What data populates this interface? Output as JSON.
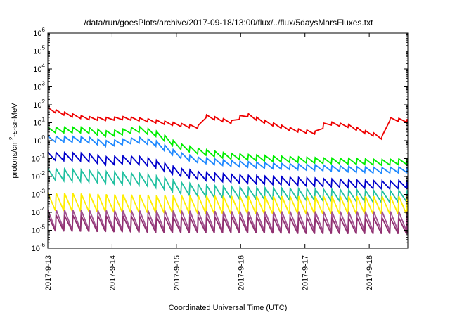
{
  "chart_data": {
    "type": "line",
    "title": "/data/run/goesPlots/archive/2017-09-18/13:00/flux/../flux/5daysMarsFluxes.txt",
    "xlabel": "Coordinated Universal Time (UTC)",
    "ylabel_parts": [
      "protons/cm",
      "2",
      "-s-sr-MeV"
    ],
    "ylabel": "protons/cm2-s-sr-MeV",
    "y_scale": "log",
    "ylim_exp": [
      -6,
      6
    ],
    "y_ticks": [
      {
        "base": "10",
        "exp": "6"
      },
      {
        "base": "10",
        "exp": "5"
      },
      {
        "base": "10",
        "exp": "4"
      },
      {
        "base": "10",
        "exp": "3"
      },
      {
        "base": "10",
        "exp": "2"
      },
      {
        "base": "10",
        "exp": "1"
      },
      {
        "base": "10",
        "exp": "0"
      },
      {
        "base": "10",
        "exp": "-1"
      },
      {
        "base": "10",
        "exp": "-2"
      },
      {
        "base": "10",
        "exp": "-3"
      },
      {
        "base": "10",
        "exp": "-4"
      },
      {
        "base": "10",
        "exp": "-5"
      },
      {
        "base": "10",
        "exp": "-6"
      }
    ],
    "x_range_days": [
      0,
      5.6
    ],
    "x_ticks": [
      {
        "label": "2017-9-13",
        "day": 0
      },
      {
        "label": "2017-9-14",
        "day": 1
      },
      {
        "label": "2017-9-15",
        "day": 2
      },
      {
        "label": "2017-9-16",
        "day": 3
      },
      {
        "label": "2017-9-17",
        "day": 4
      },
      {
        "label": "2017-9-18",
        "day": 5
      }
    ],
    "grid": false,
    "legend": "none",
    "series": [
      {
        "color": "#ee0000",
        "sawtooth_period_days": 0.13,
        "drop_decades": 0.18,
        "envelope": [
          [
            0,
            1.85
          ],
          [
            0.3,
            1.55
          ],
          [
            0.6,
            1.35
          ],
          [
            0.9,
            1.3
          ],
          [
            1.2,
            1.35
          ],
          [
            1.5,
            1.25
          ],
          [
            1.8,
            1.1
          ],
          [
            2.0,
            1.0
          ],
          [
            2.2,
            0.9
          ],
          [
            2.35,
            0.85
          ],
          [
            2.4,
            1.5
          ],
          [
            2.7,
            1.25
          ],
          [
            2.9,
            1.1
          ],
          [
            3.05,
            1.6
          ],
          [
            3.4,
            1.1
          ],
          [
            3.6,
            0.9
          ],
          [
            3.8,
            0.7
          ],
          [
            4.0,
            0.6
          ],
          [
            4.25,
            0.5
          ],
          [
            4.3,
            1.1
          ],
          [
            4.7,
            0.9
          ],
          [
            4.9,
            0.6
          ],
          [
            5.1,
            0.4
          ],
          [
            5.2,
            0.25
          ],
          [
            5.3,
            1.3
          ],
          [
            5.6,
            1.2
          ]
        ]
      },
      {
        "color": "#00ee00",
        "sawtooth_period_days": 0.13,
        "drop_decades": 0.32,
        "envelope": [
          [
            0,
            0.75
          ],
          [
            0.6,
            0.75
          ],
          [
            0.9,
            0.55
          ],
          [
            1.1,
            0.6
          ],
          [
            1.4,
            0.8
          ],
          [
            1.65,
            0.6
          ],
          [
            1.85,
            0.25
          ],
          [
            2.0,
            -0.1
          ],
          [
            2.3,
            -0.4
          ],
          [
            2.8,
            -0.7
          ],
          [
            3.5,
            -0.85
          ],
          [
            4.2,
            -0.95
          ],
          [
            4.8,
            -1.0
          ],
          [
            5.2,
            -1.05
          ],
          [
            5.6,
            -1.0
          ]
        ]
      },
      {
        "color": "#1e88ff",
        "sawtooth_period_days": 0.13,
        "drop_decades": 0.32,
        "envelope": [
          [
            0,
            0.25
          ],
          [
            0.6,
            0.22
          ],
          [
            0.9,
            0.0
          ],
          [
            1.1,
            0.05
          ],
          [
            1.4,
            0.2
          ],
          [
            1.65,
            0.05
          ],
          [
            1.85,
            -0.3
          ],
          [
            2.0,
            -0.6
          ],
          [
            2.3,
            -0.9
          ],
          [
            2.8,
            -1.1
          ],
          [
            3.5,
            -1.25
          ],
          [
            4.2,
            -1.35
          ],
          [
            4.8,
            -1.45
          ],
          [
            5.2,
            -1.5
          ],
          [
            5.6,
            -1.45
          ]
        ]
      },
      {
        "color": "#0000cc",
        "sawtooth_period_days": 0.13,
        "drop_decades": 0.45,
        "envelope": [
          [
            0,
            -0.65
          ],
          [
            0.6,
            -0.7
          ],
          [
            0.9,
            -0.9
          ],
          [
            1.2,
            -0.85
          ],
          [
            1.5,
            -0.9
          ],
          [
            1.7,
            -1.1
          ],
          [
            2.0,
            -1.5
          ],
          [
            2.4,
            -1.75
          ],
          [
            2.9,
            -1.9
          ],
          [
            3.5,
            -2.0
          ],
          [
            4.2,
            -2.1
          ],
          [
            4.8,
            -2.2
          ],
          [
            5.3,
            -2.25
          ],
          [
            5.6,
            -2.2
          ]
        ]
      },
      {
        "color": "#20c0a0",
        "sawtooth_period_days": 0.13,
        "drop_decades": 0.65,
        "envelope": [
          [
            0,
            -1.55
          ],
          [
            0.6,
            -1.65
          ],
          [
            1.0,
            -1.75
          ],
          [
            1.5,
            -1.85
          ],
          [
            1.8,
            -2.05
          ],
          [
            2.1,
            -2.35
          ],
          [
            2.5,
            -2.5
          ],
          [
            3.0,
            -2.6
          ],
          [
            3.6,
            -2.65
          ],
          [
            4.2,
            -2.7
          ],
          [
            4.8,
            -2.75
          ],
          [
            5.3,
            -2.8
          ],
          [
            5.6,
            -2.75
          ]
        ]
      },
      {
        "color": "#ffee00",
        "sawtooth_period_days": 0.13,
        "drop_decades": 1.0,
        "envelope": [
          [
            0,
            -2.9
          ],
          [
            1.0,
            -3.0
          ],
          [
            2.0,
            -3.05
          ],
          [
            3.0,
            -3.1
          ],
          [
            4.0,
            -3.1
          ],
          [
            5.0,
            -3.1
          ],
          [
            5.6,
            -3.1
          ]
        ]
      },
      {
        "color": "#a05090",
        "sawtooth_period_days": 0.13,
        "drop_decades": 1.1,
        "envelope": [
          [
            0,
            -3.85
          ],
          [
            1.0,
            -3.9
          ],
          [
            2.0,
            -3.9
          ],
          [
            3.0,
            -3.95
          ],
          [
            4.0,
            -3.95
          ],
          [
            5.0,
            -3.95
          ],
          [
            5.6,
            -3.95
          ]
        ]
      },
      {
        "color": "#903070",
        "sawtooth_period_days": 0.13,
        "drop_decades": 0.9,
        "envelope": [
          [
            0,
            -4.15
          ],
          [
            1.0,
            -4.2
          ],
          [
            2.0,
            -4.25
          ],
          [
            3.0,
            -4.25
          ],
          [
            4.0,
            -4.3
          ],
          [
            5.0,
            -4.3
          ],
          [
            5.6,
            -4.3
          ]
        ]
      }
    ]
  }
}
